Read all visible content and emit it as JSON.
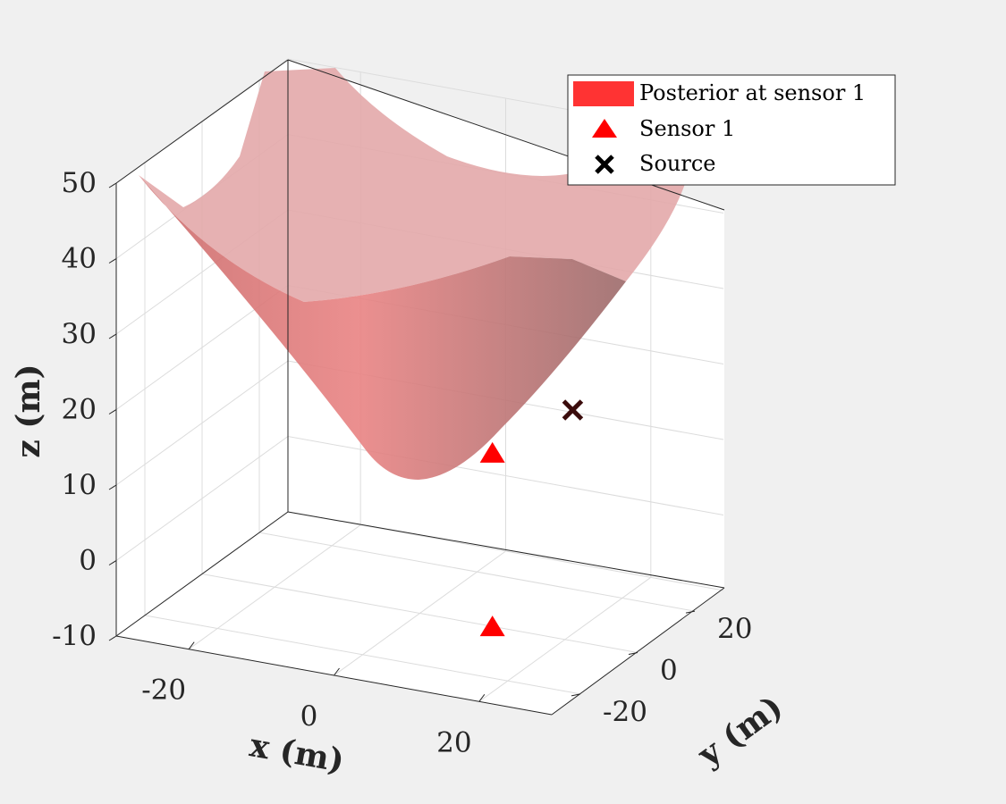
{
  "chart_data": {
    "type": "surface3d",
    "title": "",
    "xlabel": "x (m)",
    "ylabel": "y (m)",
    "zlabel": "z (m)",
    "xlim": [
      -30,
      30
    ],
    "ylim": [
      -30,
      30
    ],
    "zlim": [
      -10,
      50
    ],
    "xticks": [
      "-20",
      "0",
      "20"
    ],
    "yticks": [
      "-20",
      "0",
      "20"
    ],
    "zticks": [
      "-10",
      "0",
      "10",
      "20",
      "30",
      "40",
      "50"
    ],
    "grid": true,
    "legend_position": "top-right",
    "surface": {
      "name": "Posterior at sensor 1",
      "description": "cone opening upward with vertex near sensor 1",
      "vertex": [
        10,
        0,
        11
      ],
      "color": "#ff4040"
    },
    "series": [
      {
        "name": "Posterior at sensor 1",
        "marker": "surface",
        "color": "#ff3333"
      },
      {
        "name": "Sensor 1",
        "marker": "triangle",
        "color": "#ff0000",
        "points": [
          [
            10,
            0,
            13
          ],
          [
            10,
            0,
            -10
          ]
        ]
      },
      {
        "name": "Source",
        "marker": "x",
        "color": "#000000",
        "points": [
          [
            25,
            -10,
            24
          ]
        ]
      }
    ]
  }
}
